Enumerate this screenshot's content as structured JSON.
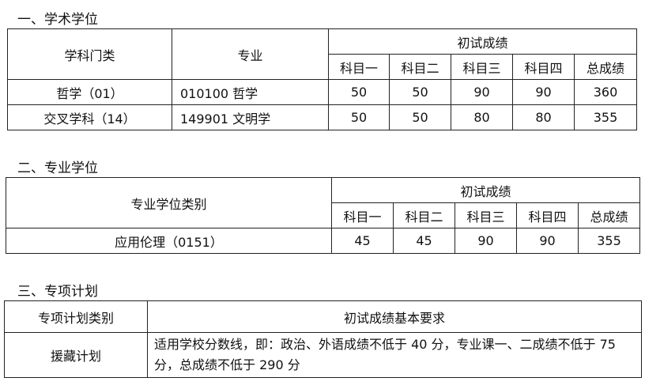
{
  "section1": {
    "title": "一、学术学位",
    "headers": {
      "category": "学科门类",
      "major": "专业",
      "scores": "初试成绩",
      "subjects": [
        "科目一",
        "科目二",
        "科目三",
        "科目四",
        "总成绩"
      ]
    },
    "rows": [
      {
        "category": "哲学（01）",
        "major": "010100 哲学",
        "scores": [
          "50",
          "50",
          "90",
          "90",
          "360"
        ]
      },
      {
        "category": "交叉学科（14）",
        "major": "149901 文明学",
        "scores": [
          "50",
          "50",
          "80",
          "80",
          "355"
        ]
      }
    ]
  },
  "section2": {
    "title": "二、专业学位",
    "headers": {
      "category": "专业学位类别",
      "scores": "初试成绩",
      "subjects": [
        "科目一",
        "科目二",
        "科目三",
        "科目四",
        "总成绩"
      ]
    },
    "rows": [
      {
        "category": "应用伦理（0151）",
        "scores": [
          "45",
          "45",
          "90",
          "90",
          "355"
        ]
      }
    ]
  },
  "section3": {
    "title": "三、专项计划",
    "headers": {
      "category": "专项计划类别",
      "requirement": "初试成绩基本要求"
    },
    "rows": [
      {
        "category": "援藏计划",
        "requirement": "适用学校分数线，即：政治、外语成绩不低于 40 分，专业课一、二成绩不低于 75 分，总成绩不低于 290 分"
      }
    ]
  }
}
